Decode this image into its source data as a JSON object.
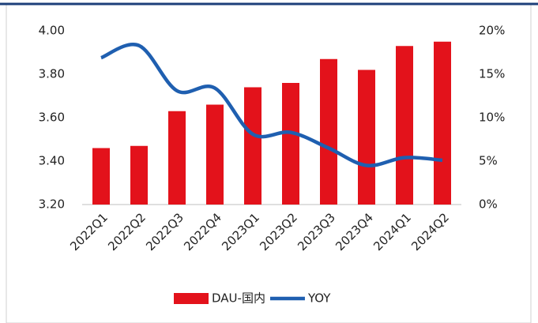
{
  "chart_data": {
    "type": "bar_line",
    "categories": [
      "2022Q1",
      "2022Q2",
      "2022Q3",
      "2022Q4",
      "2023Q1",
      "2023Q2",
      "2023Q3",
      "2023Q4",
      "2024Q1",
      "2024Q2"
    ],
    "series": [
      {
        "name": "DAU-国内",
        "color": "#e3121b",
        "type": "bar",
        "values": [
          3.46,
          3.47,
          3.63,
          3.66,
          3.74,
          3.76,
          3.87,
          3.82,
          3.93,
          3.95
        ]
      },
      {
        "name": "YOY",
        "color": "#1f5fb0",
        "type": "line",
        "axis": "y2",
        "values": [
          16.9,
          18.3,
          13.1,
          13.4,
          8.1,
          8.3,
          6.5,
          4.5,
          5.4,
          5.1
        ]
      }
    ],
    "ylim": [
      3.2,
      4.0
    ],
    "yticks": [
      {
        "value": 3.2,
        "label": "3.20"
      },
      {
        "value": 3.4,
        "label": "3.40"
      },
      {
        "value": 3.6,
        "label": "3.60"
      },
      {
        "value": 3.8,
        "label": "3.80"
      },
      {
        "value": 4.0,
        "label": "4.00"
      }
    ],
    "y2lim": [
      0,
      20
    ],
    "y2ticks": [
      {
        "value": 0,
        "label": "0%"
      },
      {
        "value": 5,
        "label": "5%"
      },
      {
        "value": 10,
        "label": "10%"
      },
      {
        "value": 15,
        "label": "15%"
      },
      {
        "value": 20,
        "label": "20%"
      }
    ],
    "grid": false,
    "legend": "bottom"
  }
}
